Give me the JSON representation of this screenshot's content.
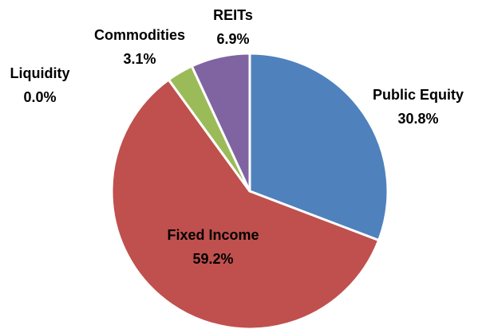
{
  "chart_data": {
    "type": "pie",
    "categories": [
      "Public Equity",
      "Fixed Income",
      "Liquidity",
      "Commodities",
      "REITs"
    ],
    "values": [
      30.8,
      59.2,
      0,
      3.1,
      6.9
    ],
    "value_labels": [
      "30.8%",
      "59.2%",
      "0.0%",
      "3.1%",
      "6.9%"
    ],
    "colors": [
      "#4f81bd",
      "#c0504d",
      "#4bacc6",
      "#9bbb59",
      "#8064a2"
    ]
  }
}
